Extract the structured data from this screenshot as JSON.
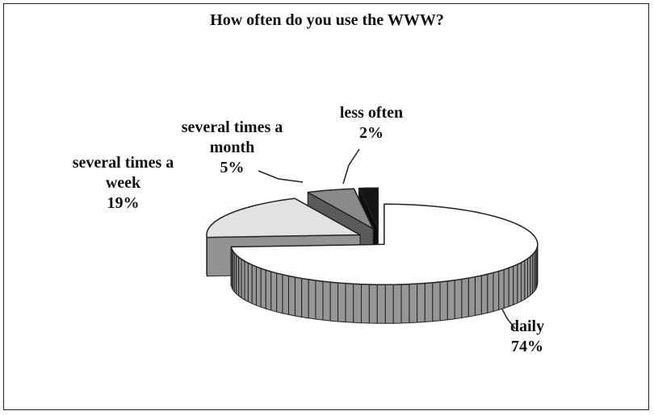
{
  "chart_data": {
    "type": "pie",
    "title": "How often do you use the WWW?",
    "categories": [
      "daily",
      "several times a week",
      "several times a month",
      "less often"
    ],
    "values": [
      74,
      19,
      5,
      2
    ],
    "value_labels": [
      "74%",
      "19%",
      "5%",
      "2%"
    ],
    "colors": [
      "#ffffff",
      "#e2e2e2",
      "#8a8a8a",
      "#151515"
    ]
  }
}
